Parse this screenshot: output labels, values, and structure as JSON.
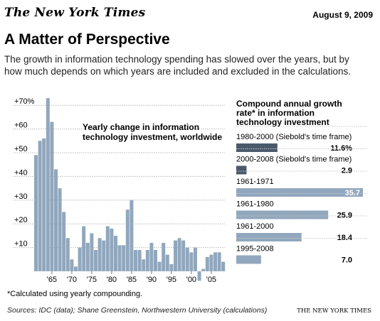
{
  "header": {
    "masthead": "The New York Times",
    "date": "August 9, 2009",
    "title": "A Matter of Perspective",
    "subtitle": "The growth in information technology spending has slowed over the years, but by how much depends on which years are included and excluded in the calculations."
  },
  "chart_data": [
    {
      "type": "bar",
      "title": "Yearly change in information technology investment, worldwide",
      "y_ticks": [
        "+70%",
        "+60",
        "+50",
        "+40",
        "+30",
        "+20",
        "+10"
      ],
      "x_ticks": [
        "'65",
        "'70",
        "'75",
        "'80",
        "'85",
        "'90",
        "'95",
        "'00",
        "'05"
      ],
      "ylim": [
        -5,
        73
      ],
      "grid": true,
      "color": "#91a7bd",
      "x": [
        1961,
        1962,
        1963,
        1964,
        1965,
        1966,
        1967,
        1968,
        1969,
        1970,
        1971,
        1972,
        1973,
        1974,
        1975,
        1976,
        1977,
        1978,
        1979,
        1980,
        1981,
        1982,
        1983,
        1984,
        1985,
        1986,
        1987,
        1988,
        1989,
        1990,
        1991,
        1992,
        1993,
        1994,
        1995,
        1996,
        1997,
        1998,
        1999,
        2000,
        2001,
        2002,
        2003,
        2004,
        2005,
        2006,
        2007,
        2008
      ],
      "values": [
        49,
        55,
        56,
        73,
        63,
        43,
        35,
        25,
        14,
        5,
        2,
        10,
        19,
        12,
        16,
        9,
        14,
        13,
        19,
        18,
        15,
        11,
        11,
        26,
        30,
        9,
        9,
        5,
        9,
        12,
        9,
        4,
        12,
        7,
        3,
        13,
        14,
        13,
        10,
        8,
        10,
        -4,
        1,
        6,
        7,
        8,
        8,
        4
      ]
    },
    {
      "type": "bar",
      "title": "Compound annual growth rate* in information technology investment",
      "orientation": "horizontal",
      "xlim": [
        0,
        35.7
      ],
      "bars": [
        {
          "label": "1980-2000 (Siebold's time frame)",
          "value": 11.6,
          "display": "11.6%",
          "color": "#4a5a6b"
        },
        {
          "label": "2000-2008 (Siebold's time frame)",
          "value": 2.9,
          "display": "2.9",
          "color": "#4a5a6b"
        },
        {
          "label": "1961-1971",
          "value": 35.7,
          "display": "35.7",
          "color": "#91a7bd"
        },
        {
          "label": "1961-1980",
          "value": 25.9,
          "display": "25.9",
          "color": "#91a7bd"
        },
        {
          "label": "1961-2000",
          "value": 18.4,
          "display": "18.4",
          "color": "#91a7bd"
        },
        {
          "label": "1995-2008",
          "value": 7.0,
          "display": "7.0",
          "color": "#91a7bd"
        }
      ]
    }
  ],
  "footer": {
    "footnote": "*Calculated using yearly compounding.",
    "sources": "Sources: IDC (data); Shane Greenstein, Northwestern University (calculations)",
    "credit": "THE NEW YORK TIMES"
  }
}
